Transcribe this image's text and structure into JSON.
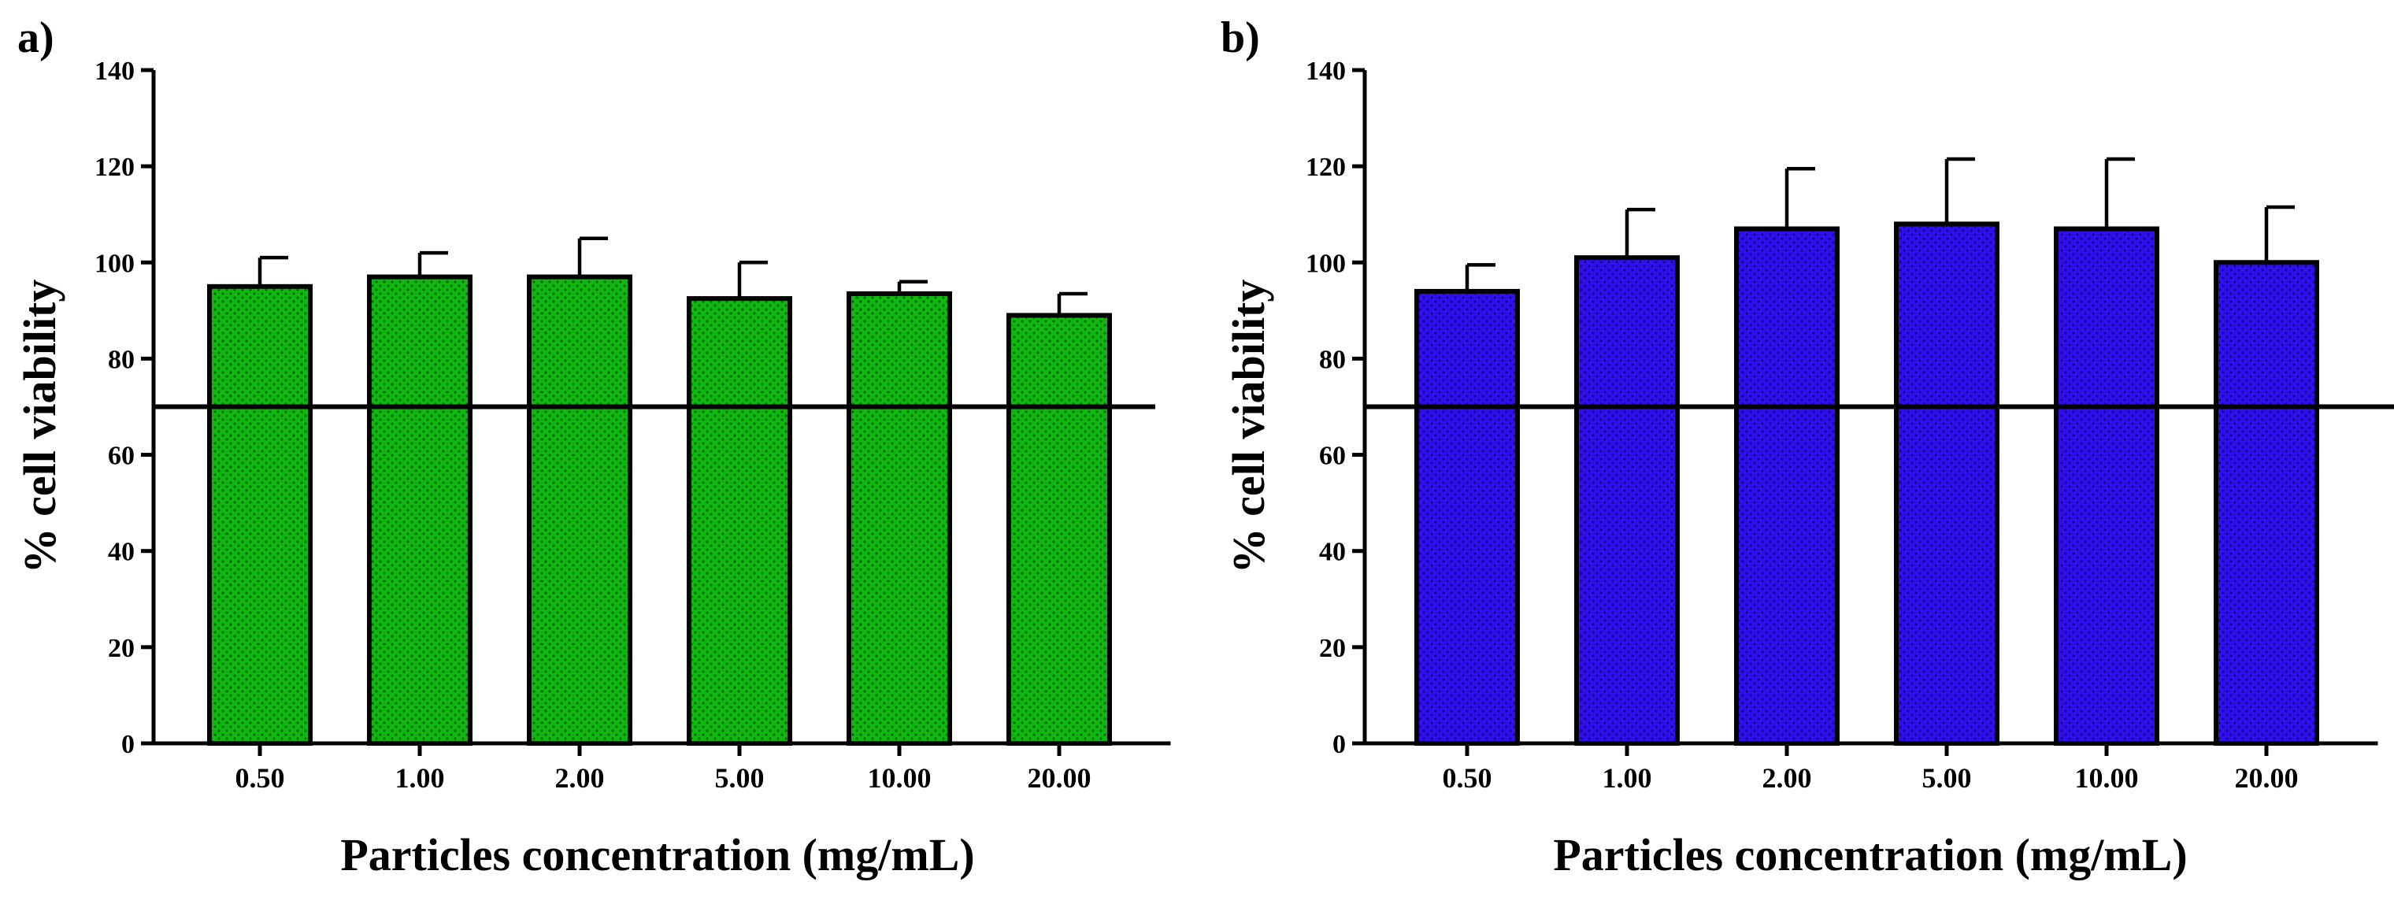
{
  "chart_data": [
    {
      "type": "bar",
      "panel_label": "a)",
      "title": "",
      "xlabel": "Particles concentration (mg/mL)",
      "ylabel": "% cell viability",
      "categories": [
        "0.50",
        "1.00",
        "2.00",
        "5.00",
        "10.00",
        "20.00"
      ],
      "values": [
        95,
        97,
        97,
        92.5,
        93.5,
        89
      ],
      "errors": [
        6,
        5,
        8,
        7.5,
        2.5,
        4.5
      ],
      "reference_line": 70,
      "ylim": [
        0,
        140
      ],
      "yticks": [
        "0",
        "20",
        "40",
        "60",
        "80",
        "100",
        "120",
        "140"
      ],
      "grid": false,
      "bar_color": "#0fb80f"
    },
    {
      "type": "bar",
      "panel_label": "b)",
      "title": "",
      "xlabel": "Particles concentration (mg/mL)",
      "ylabel": "% cell viability",
      "categories": [
        "0.50",
        "1.00",
        "2.00",
        "5.00",
        "10.00",
        "20.00"
      ],
      "values": [
        94,
        101,
        107,
        108,
        107,
        100
      ],
      "errors": [
        5.5,
        10,
        12.5,
        13.5,
        14.5,
        11.5
      ],
      "reference_line": 70,
      "ylim": [
        0,
        140
      ],
      "yticks": [
        "0",
        "20",
        "40",
        "60",
        "80",
        "100",
        "120",
        "140"
      ],
      "grid": false,
      "bar_color": "#2f0ef0"
    }
  ]
}
